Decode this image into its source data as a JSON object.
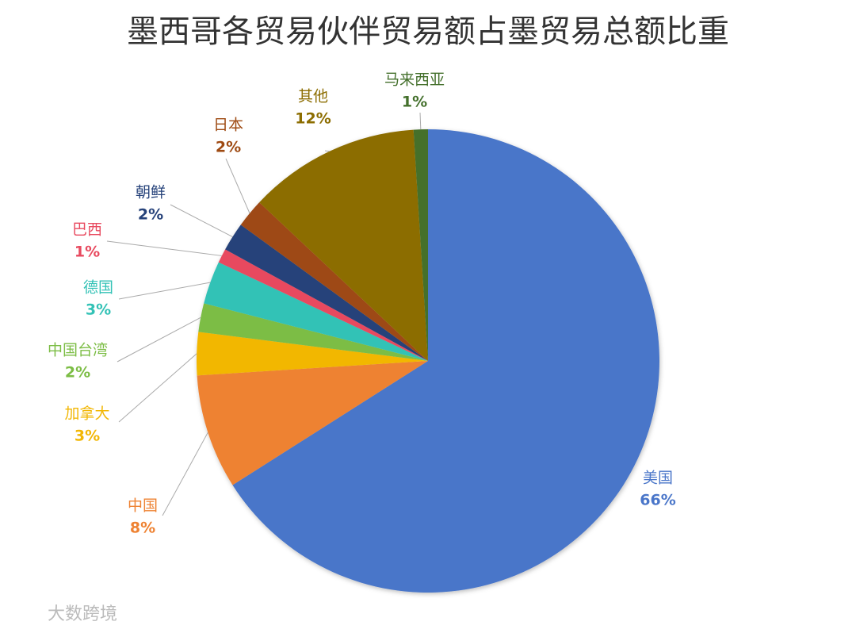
{
  "chart_data": {
    "type": "pie",
    "title": "墨西哥各贸易伙伴贸易额占墨贸易总额比重",
    "categories": [
      "美国",
      "中国",
      "加拿大",
      "中国台湾",
      "德国",
      "巴西",
      "朝鲜",
      "日本",
      "其他",
      "马来西亚"
    ],
    "values": [
      66,
      8,
      3,
      2,
      3,
      1,
      2,
      2,
      12,
      1
    ],
    "value_labels": [
      "66%",
      "8%",
      "3%",
      "2%",
      "3%",
      "1%",
      "2%",
      "2%",
      "12%",
      "1%"
    ],
    "colors": [
      "#4a76c9",
      "#ee8232",
      "#f2b705",
      "#7cbd45",
      "#33c2b6",
      "#e84a5f",
      "#26427a",
      "#9e4a12",
      "#8c6d00",
      "#44702c"
    ],
    "watermark": "大数跨境"
  }
}
